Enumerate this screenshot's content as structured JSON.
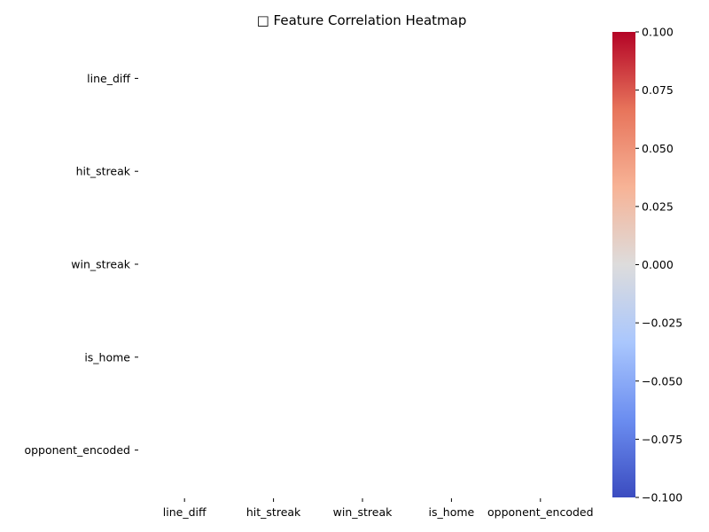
{
  "chart_data": {
    "type": "heatmap",
    "title": "□ Feature Correlation Heatmap",
    "x_labels": [
      "line_diff",
      "hit_streak",
      "win_streak",
      "is_home",
      "opponent_encoded"
    ],
    "y_labels": [
      "line_diff",
      "hit_streak",
      "win_streak",
      "is_home",
      "opponent_encoded"
    ],
    "values": [
      [
        null,
        null,
        null,
        null,
        null
      ],
      [
        null,
        null,
        null,
        null,
        null
      ],
      [
        null,
        null,
        null,
        null,
        null
      ],
      [
        null,
        null,
        null,
        null,
        null
      ],
      [
        null,
        null,
        null,
        null,
        null
      ]
    ],
    "colormap": "coolwarm",
    "colorbar": {
      "range": [
        -0.1,
        0.1
      ],
      "ticks": [
        "0.100",
        "0.075",
        "0.050",
        "0.025",
        "0.000",
        "−0.025",
        "−0.050",
        "−0.075",
        "−0.100"
      ],
      "colors": [
        "#b40426",
        "#e7745b",
        "#f7b396",
        "#dddcdc",
        "#aac7fd",
        "#6b8df0",
        "#3b4cc0"
      ]
    },
    "grid": false
  }
}
